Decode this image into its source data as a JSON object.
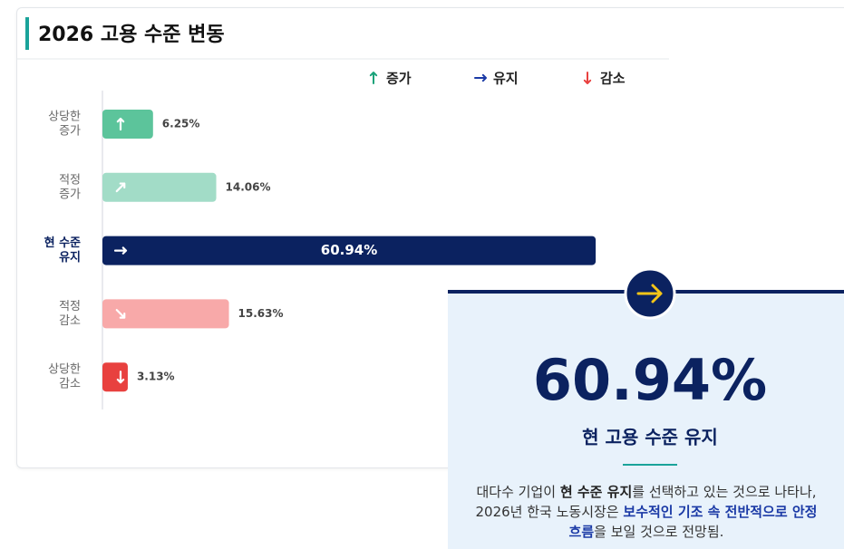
{
  "chart_data": {
    "type": "bar",
    "orientation": "horizontal",
    "title": "2026 고용 수준 변동",
    "legend": [
      {
        "label": "증가",
        "color": "#1aa37a"
      },
      {
        "label": "유지",
        "color": "#1b3aa6"
      },
      {
        "label": "감소",
        "color": "#e8413f"
      }
    ],
    "categories": [
      [
        "상당한",
        "증가"
      ],
      [
        "적정",
        "증가"
      ],
      [
        "현 수준",
        "유지"
      ],
      [
        "적정",
        "감소"
      ],
      [
        "상당한",
        "감소"
      ]
    ],
    "values": [
      6.25,
      14.06,
      60.94,
      15.63,
      3.13
    ],
    "value_labels": [
      "6.25%",
      "14.06%",
      "60.94%",
      "15.63%",
      "3.13%"
    ],
    "colors": [
      "#5cc49b",
      "#a2dcc7",
      "#0b2260",
      "#f8a9a9",
      "#e8413f"
    ],
    "highlight": 2,
    "xlim": [
      0,
      70
    ],
    "grid": false
  },
  "callout": {
    "value": "60.94%",
    "title": "현 고용 수준 유지",
    "description": [
      {
        "text": "대다수 기업이 "
      },
      {
        "text": "현 수준 유지",
        "style": "bold"
      },
      {
        "text": "를 선택하고 있는 것으로 나타나, 2026년 한국 노동시장은 "
      },
      {
        "text": "보수적인 기조 속 전반적으로 안정 흐름",
        "style": "highlight"
      },
      {
        "text": "을 보일 것으로 전망됨."
      }
    ]
  }
}
